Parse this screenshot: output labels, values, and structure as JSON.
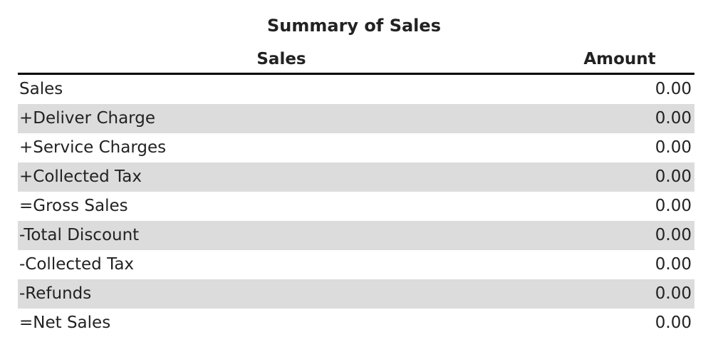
{
  "title": "Summary of Sales",
  "table": {
    "headers": [
      "Sales",
      "Amount"
    ],
    "rows": [
      [
        "Sales",
        "0.00"
      ],
      [
        "+Deliver Charge",
        "0.00"
      ],
      [
        "+Service Charges",
        "0.00"
      ],
      [
        "+Collected Tax",
        "0.00"
      ],
      [
        "=Gross Sales",
        "0.00"
      ],
      [
        "-Total Discount",
        "0.00"
      ],
      [
        "-Collected Tax",
        "0.00"
      ],
      [
        "-Refunds",
        "0.00"
      ],
      [
        "=Net Sales",
        "0.00"
      ]
    ]
  }
}
